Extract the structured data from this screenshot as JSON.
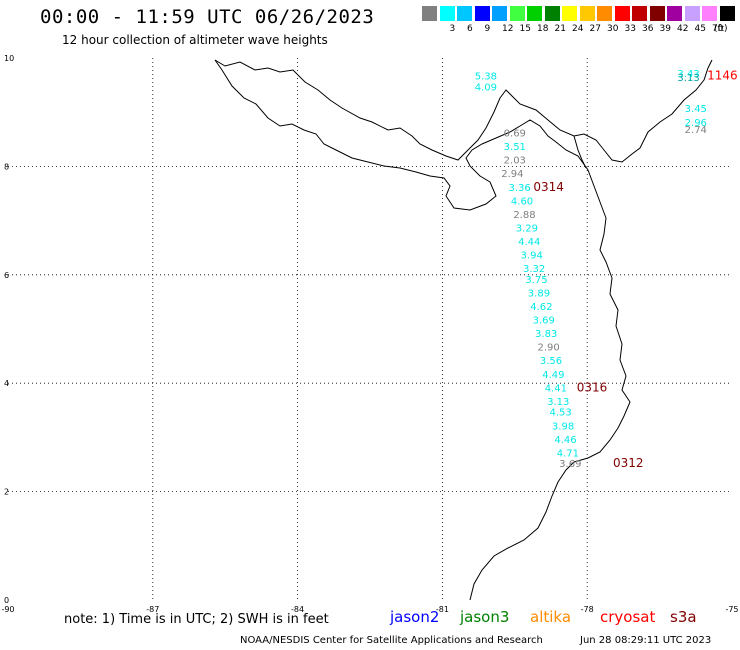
{
  "header": {
    "title": "00:00 - 11:59 UTC 06/26/2023",
    "subtitle": "12 hour collection of altimeter wave heights"
  },
  "scale": {
    "unit": "(ft)",
    "bins": [
      {
        "label": "",
        "color": "#808080"
      },
      {
        "label": "3",
        "color": "#00ffff"
      },
      {
        "label": "6",
        "color": "#00c8ff"
      },
      {
        "label": "9",
        "color": "#0000ff"
      },
      {
        "label": "12",
        "color": "#00a0ff"
      },
      {
        "label": "15",
        "color": "#40ff40"
      },
      {
        "label": "18",
        "color": "#00d000"
      },
      {
        "label": "21",
        "color": "#008000"
      },
      {
        "label": "24",
        "color": "#ffff00"
      },
      {
        "label": "27",
        "color": "#ffc800"
      },
      {
        "label": "30",
        "color": "#ff8c00"
      },
      {
        "label": "33",
        "color": "#ff0000"
      },
      {
        "label": "36",
        "color": "#c00000"
      },
      {
        "label": "39",
        "color": "#800000"
      },
      {
        "label": "42",
        "color": "#a000a0"
      },
      {
        "label": "45",
        "color": "#c8a0ff"
      },
      {
        "label": "70",
        "color": "#ff80ff"
      },
      {
        "label": "",
        "color": "#000000"
      }
    ]
  },
  "axes": {
    "lon_ticks": [
      {
        "value": -90,
        "label": "-90"
      },
      {
        "value": -87,
        "label": "-87"
      },
      {
        "value": -84,
        "label": "-84"
      },
      {
        "value": -81,
        "label": "-81"
      },
      {
        "value": -78,
        "label": "-78"
      },
      {
        "value": -75,
        "label": "-75"
      }
    ],
    "lat_ticks": [
      {
        "value": 0,
        "label": "0"
      },
      {
        "value": 2,
        "label": "2"
      },
      {
        "value": 4,
        "label": "4"
      },
      {
        "value": 6,
        "label": "6"
      },
      {
        "value": 8,
        "label": "8"
      },
      {
        "value": 10,
        "label": "10"
      }
    ],
    "lon_range": [
      -90,
      -75
    ],
    "lat_range": [
      0,
      10
    ],
    "grid": "dotted"
  },
  "chart_data": {
    "type": "scatter",
    "observations": [
      {
        "lon": -80.1,
        "lat": 9.6,
        "value": "5.38",
        "color": "#00e8e8"
      },
      {
        "lon": -80.1,
        "lat": 9.4,
        "value": "4.09",
        "color": "#00e8e8"
      },
      {
        "lon": -79.5,
        "lat": 8.55,
        "value": "0.69",
        "color": "#808080"
      },
      {
        "lon": -79.5,
        "lat": 8.3,
        "value": "3.51",
        "color": "#00e8e8"
      },
      {
        "lon": -79.5,
        "lat": 8.05,
        "value": "2.03",
        "color": "#808080"
      },
      {
        "lon": -79.55,
        "lat": 7.8,
        "value": "2.94",
        "color": "#808080"
      },
      {
        "lon": -79.4,
        "lat": 7.55,
        "value": "3.36",
        "color": "#00e8e8"
      },
      {
        "lon": -79.35,
        "lat": 7.3,
        "value": "4.60",
        "color": "#00e8e8"
      },
      {
        "lon": -79.3,
        "lat": 7.05,
        "value": "2.88",
        "color": "#808080"
      },
      {
        "lon": -79.25,
        "lat": 6.8,
        "value": "3.29",
        "color": "#00e8e8"
      },
      {
        "lon": -79.2,
        "lat": 6.55,
        "value": "4.44",
        "color": "#00e8e8"
      },
      {
        "lon": -79.15,
        "lat": 6.3,
        "value": "3.94",
        "color": "#00e8e8"
      },
      {
        "lon": -79.1,
        "lat": 6.05,
        "value": "3.32",
        "color": "#00e8e8"
      },
      {
        "lon": -79.05,
        "lat": 5.85,
        "value": "3.75",
        "color": "#00e8e8"
      },
      {
        "lon": -79.0,
        "lat": 5.6,
        "value": "3.89",
        "color": "#00e8e8"
      },
      {
        "lon": -78.95,
        "lat": 5.35,
        "value": "4.62",
        "color": "#00e8e8"
      },
      {
        "lon": -78.9,
        "lat": 5.1,
        "value": "3.69",
        "color": "#00e8e8"
      },
      {
        "lon": -78.85,
        "lat": 4.85,
        "value": "3.83",
        "color": "#00e8e8"
      },
      {
        "lon": -78.8,
        "lat": 4.6,
        "value": "2.90",
        "color": "#808080"
      },
      {
        "lon": -78.75,
        "lat": 4.35,
        "value": "3.56",
        "color": "#00e8e8"
      },
      {
        "lon": -78.7,
        "lat": 4.1,
        "value": "4.49",
        "color": "#00e8e8"
      },
      {
        "lon": -78.65,
        "lat": 3.85,
        "value": "4.41",
        "color": "#00e8e8"
      },
      {
        "lon": -78.6,
        "lat": 3.6,
        "value": "3.13",
        "color": "#00e8e8"
      },
      {
        "lon": -78.55,
        "lat": 3.4,
        "value": "4.53",
        "color": "#00e8e8"
      },
      {
        "lon": -78.5,
        "lat": 3.15,
        "value": "3.98",
        "color": "#00e8e8"
      },
      {
        "lon": -78.45,
        "lat": 2.9,
        "value": "4.46",
        "color": "#00e8e8"
      },
      {
        "lon": -78.4,
        "lat": 2.65,
        "value": "4.71",
        "color": "#00e8e8"
      },
      {
        "lon": -78.35,
        "lat": 2.45,
        "value": "3.69",
        "color": "#808080"
      },
      {
        "lon": -75.9,
        "lat": 9.65,
        "value": "3.43",
        "color": "#00e8e8"
      },
      {
        "lon": -75.9,
        "lat": 9.58,
        "value": "3.13",
        "color": "#00a0a0"
      },
      {
        "lon": -75.75,
        "lat": 9.0,
        "value": "3.45",
        "color": "#00e8e8"
      },
      {
        "lon": -75.75,
        "lat": 8.75,
        "value": "2.96",
        "color": "#00e8e8"
      },
      {
        "lon": -75.75,
        "lat": 8.62,
        "value": "2.74",
        "color": "#808080"
      }
    ],
    "passes": [
      {
        "lon": -78.8,
        "lat": 7.55,
        "label": "0314",
        "color": "#800000"
      },
      {
        "lon": -77.9,
        "lat": 3.85,
        "label": "0316",
        "color": "#800000"
      },
      {
        "lon": -77.15,
        "lat": 2.45,
        "label": "0312",
        "color": "#800000"
      },
      {
        "lon": -75.2,
        "lat": 9.6,
        "label": "1146",
        "color": "#ff0000"
      }
    ]
  },
  "legend": {
    "note": "note: 1) Time is in UTC; 2) SWH is in feet",
    "satellites": [
      {
        "name": "jason2",
        "color": "#0000ff"
      },
      {
        "name": "jason3",
        "color": "#008000"
      },
      {
        "name": "altika",
        "color": "#ff8c00"
      },
      {
        "name": "cryosat",
        "color": "#ff0000"
      },
      {
        "name": "s3a",
        "color": "#800000"
      }
    ]
  },
  "footer": {
    "credit": "NOAA/NESDIS Center for Satellite Applications and Research",
    "timestamp": "Jun 28 08:29:11 UTC 2023"
  }
}
